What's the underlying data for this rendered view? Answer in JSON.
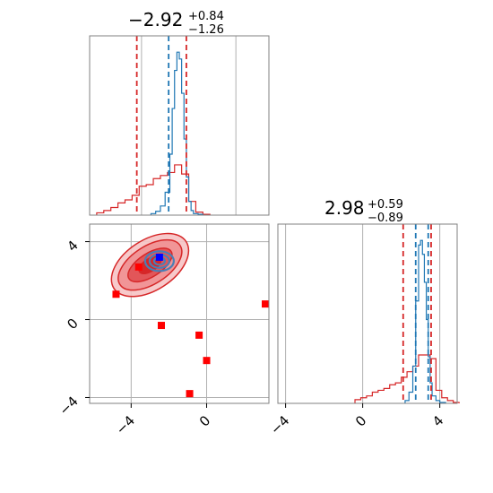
{
  "chart_data": {
    "type": "corner",
    "colors": {
      "red": "#d62728",
      "blue": "#1f77b4",
      "grid": "#b0b0b0",
      "frame": "#808080"
    },
    "param1": {
      "title": {
        "median": "−2.92",
        "plus": "+0.84",
        "minus": "−1.26"
      },
      "xlim": [
        -6.2,
        1.4
      ],
      "tick_labels": [
        "−4",
        "0"
      ],
      "tick_values": [
        -4,
        0
      ],
      "red_lines": [
        -4.2,
        -2.1
      ],
      "blue_lines": [
        -2.85
      ]
    },
    "param2": {
      "title": {
        "median": "2.98",
        "plus": "+0.59",
        "minus": "−0.89"
      },
      "xlim": [
        -4.4,
        4.9
      ],
      "tick_labels": [
        "−4",
        "0",
        "4"
      ],
      "tick_values": [
        -4,
        0,
        4
      ],
      "red_lines": [
        2.1,
        3.55
      ],
      "blue_lines": [
        2.75,
        3.4
      ]
    },
    "scatter_panel": {
      "xlim": [
        -6.2,
        3.3
      ],
      "ylim": [
        -4.3,
        4.9
      ],
      "x_tick_labels": [
        "−4",
        "0"
      ],
      "x_tick_values": [
        -4,
        0
      ],
      "y_tick_labels": [
        "−4",
        "0",
        "4"
      ],
      "y_tick_values": [
        -4,
        0,
        4
      ],
      "red_points": [
        {
          "x": -4.8,
          "y": 1.3
        },
        {
          "x": -3.6,
          "y": 2.7
        },
        {
          "x": -2.4,
          "y": -0.3
        },
        {
          "x": -0.4,
          "y": -0.8
        },
        {
          "x": 0.0,
          "y": -2.1
        },
        {
          "x": -0.9,
          "y": -3.8
        },
        {
          "x": 3.3,
          "y": 0.8
        }
      ],
      "blue_point": {
        "x": -2.5,
        "y": 3.2
      }
    },
    "hist1_red": {
      "bins": [
        -5.9,
        -5.6,
        -5.3,
        -5.0,
        -4.7,
        -4.4,
        -4.1,
        -3.8,
        -3.5,
        -3.2,
        -2.9,
        -2.6,
        -2.3,
        -2.0,
        -1.7,
        -1.4
      ],
      "counts": [
        3,
        6,
        10,
        16,
        20,
        26,
        38,
        40,
        48,
        52,
        56,
        66,
        54,
        18,
        4,
        1
      ]
    },
    "hist1_blue": {
      "bins": [
        -3.6,
        -3.4,
        -3.2,
        -3.0,
        -2.8,
        -2.7,
        -2.6,
        -2.5,
        -2.4,
        -2.3,
        -2.2,
        -2.1,
        -2.0,
        -1.9,
        -1.8,
        -1.6
      ],
      "counts": [
        2,
        5,
        12,
        30,
        80,
        140,
        190,
        214,
        205,
        160,
        100,
        50,
        18,
        6,
        2,
        1
      ]
    },
    "hist2_red": {
      "bins": [
        -0.4,
        -0.1,
        0.2,
        0.5,
        0.8,
        1.1,
        1.4,
        1.7,
        2.0,
        2.3,
        2.6,
        2.9,
        3.2,
        3.5,
        3.8,
        4.1,
        4.4,
        4.7
      ],
      "counts": [
        4,
        6,
        8,
        12,
        14,
        16,
        20,
        22,
        28,
        34,
        40,
        52,
        52,
        48,
        14,
        6,
        3,
        1
      ]
    },
    "hist2_blue": {
      "bins": [
        2.2,
        2.4,
        2.6,
        2.75,
        2.9,
        3.0,
        3.1,
        3.2,
        3.3,
        3.4,
        3.5,
        3.6,
        3.8,
        4.0,
        4.3
      ],
      "counts": [
        3,
        12,
        40,
        110,
        170,
        175,
        160,
        130,
        90,
        50,
        22,
        8,
        3,
        1
      ]
    }
  }
}
